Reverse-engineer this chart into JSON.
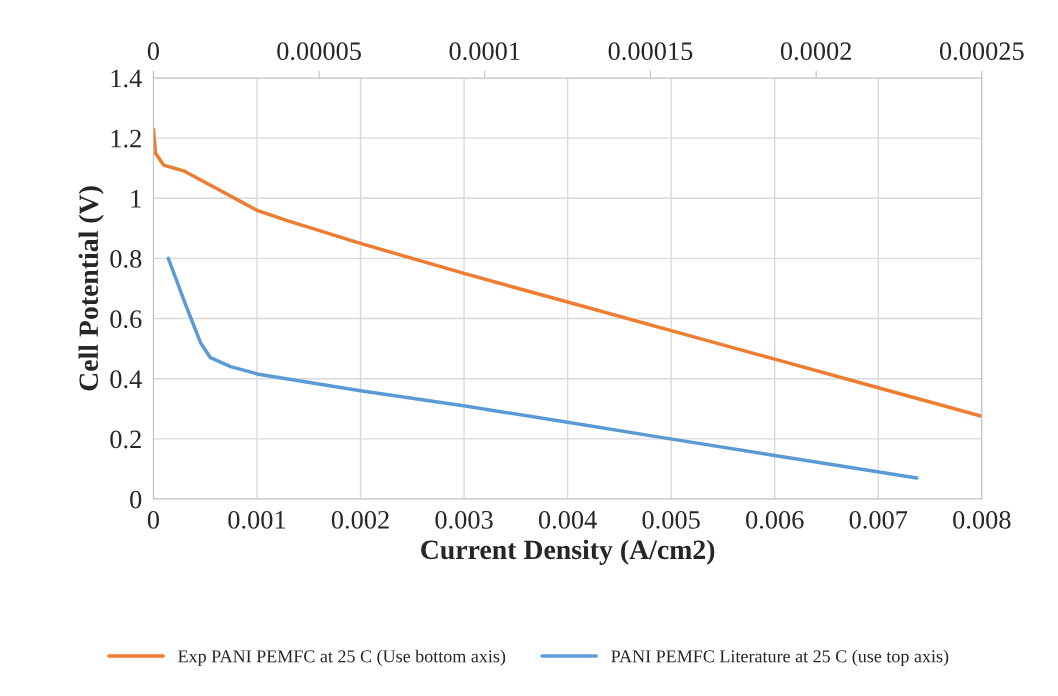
{
  "chart_data": {
    "type": "line",
    "xlabel": "Current Density (A/cm2)",
    "ylabel": "Cell Potential (V)",
    "xlim": [
      0,
      0.008
    ],
    "xticks": [
      0,
      0.001,
      0.002,
      0.003,
      0.004,
      0.005,
      0.006,
      0.007,
      0.008
    ],
    "x2lim": [
      0,
      0.00025
    ],
    "x2ticks": [
      0,
      {
        "value": 5e-05,
        "label": "0.00005"
      },
      0.0001,
      0.00015,
      0.0002,
      0.00025
    ],
    "ylim": [
      0,
      1.4
    ],
    "yticks": [
      0,
      0.2,
      0.4,
      0.6,
      0.8,
      1,
      1.2,
      1.4
    ],
    "grid": true,
    "legend": "bottom",
    "marker": "none",
    "line_style": "solid",
    "series": [
      {
        "name": "Exp PANI PEMFC at 25 C (Use bottom axis)",
        "color": "#ed7d31",
        "x": [
          0,
          2e-05,
          0.0001,
          0.0003,
          0.001,
          0.0013,
          0.002,
          0.003,
          0.004,
          0.005,
          0.006,
          0.007,
          0.008
        ],
        "values": [
          1.23,
          1.15,
          1.11,
          1.09,
          0.96,
          0.925,
          0.85,
          0.75,
          0.655,
          0.56,
          0.465,
          0.37,
          0.275
        ]
      },
      {
        "name": "PANI PEMFC Literature at 25 C (use top axis)",
        "color": "#5b9bd5",
        "axis": "x2",
        "x": [
          4.5e-06,
          9.6e-06,
          1.42e-05,
          1.72e-05,
          2.33e-05,
          3.17e-05,
          6.25e-05,
          9.36e-05,
          0.000125,
          0.000156,
          0.0001875,
          0.0002304
        ],
        "values": [
          0.8,
          0.65,
          0.52,
          0.47,
          0.44,
          0.415,
          0.36,
          0.31,
          0.255,
          0.2,
          0.145,
          0.07
        ]
      }
    ]
  }
}
